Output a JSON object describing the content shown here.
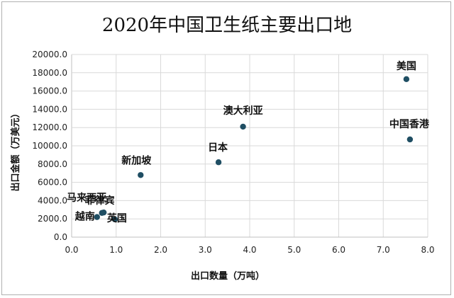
{
  "chart_data": {
    "type": "scatter",
    "title": "2020年中国卫生纸主要出口地",
    "xlabel": "出口数量（万吨）",
    "ylabel": "出口金额（万美元）",
    "xlim": [
      0,
      8
    ],
    "ylim": [
      0,
      20000
    ],
    "x_ticks": [
      "0.0",
      "1.0",
      "2.0",
      "3.0",
      "4.0",
      "5.0",
      "6.0",
      "7.0",
      "8.0"
    ],
    "y_ticks": [
      "0.0",
      "2000.0",
      "4000.0",
      "6000.0",
      "8000.0",
      "10000.0",
      "12000.0",
      "14000.0",
      "16000.0",
      "18000.0",
      "20000.0"
    ],
    "grid": true,
    "legend": "none",
    "point_color": "#1f4e63",
    "points": [
      {
        "label": "美国",
        "x": 7.52,
        "y": 17300
      },
      {
        "label": "中国香港",
        "x": 7.6,
        "y": 10700
      },
      {
        "label": "澳大利亚",
        "x": 3.85,
        "y": 12100
      },
      {
        "label": "日本",
        "x": 3.3,
        "y": 8200
      },
      {
        "label": "新加坡",
        "x": 1.55,
        "y": 6800
      },
      {
        "label": "马来西亚",
        "x": 0.72,
        "y": 2700
      },
      {
        "label": "菲律宾",
        "x": 0.68,
        "y": 2650
      },
      {
        "label": "越南",
        "x": 0.57,
        "y": 2200
      },
      {
        "label": "英国",
        "x": 0.97,
        "y": 1950
      }
    ]
  }
}
